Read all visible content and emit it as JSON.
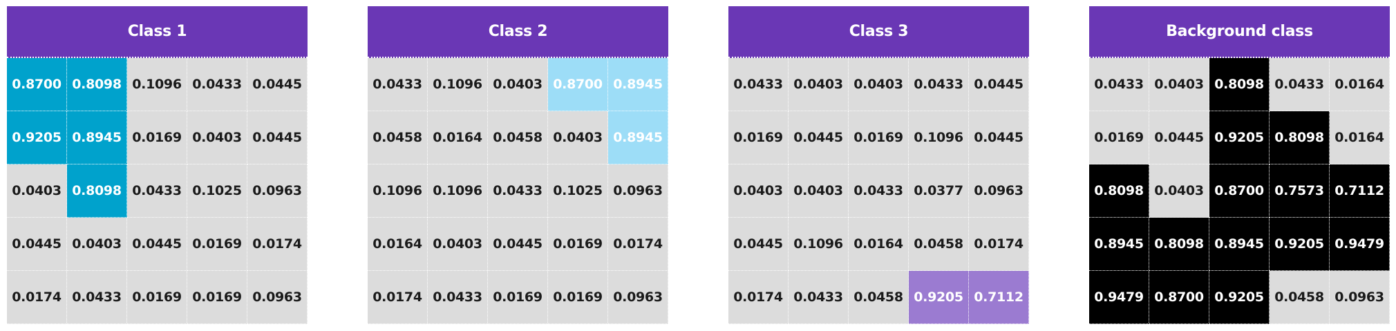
{
  "panels": [
    {
      "title": "Class 1",
      "highlight_color": "#00a2cc",
      "rows": [
        [
          "0.8700",
          "0.8098",
          "0.1096",
          "0.0433",
          "0.0445"
        ],
        [
          "0.9205",
          "0.8945",
          "0.0169",
          "0.0403",
          "0.0445"
        ],
        [
          "0.0403",
          "0.8098",
          "0.0433",
          "0.1025",
          "0.0963"
        ],
        [
          "0.0445",
          "0.0403",
          "0.0445",
          "0.0169",
          "0.0174"
        ],
        [
          "0.0174",
          "0.0433",
          "0.0169",
          "0.0169",
          "0.0963"
        ]
      ],
      "highlighted": [
        [
          0,
          0
        ],
        [
          0,
          1
        ],
        [
          1,
          0
        ],
        [
          1,
          1
        ],
        [
          2,
          1
        ]
      ]
    },
    {
      "title": "Class 2",
      "highlight_color": "#9dddf7",
      "rows": [
        [
          "0.0433",
          "0.1096",
          "0.0403",
          "0.8700",
          "0.8945"
        ],
        [
          "0.0458",
          "0.0164",
          "0.0458",
          "0.0403",
          "0.8945"
        ],
        [
          "0.1096",
          "0.1096",
          "0.0433",
          "0.1025",
          "0.0963"
        ],
        [
          "0.0164",
          "0.0403",
          "0.0445",
          "0.0169",
          "0.0174"
        ],
        [
          "0.0174",
          "0.0433",
          "0.0169",
          "0.0169",
          "0.0963"
        ]
      ],
      "highlighted": [
        [
          0,
          3
        ],
        [
          0,
          4
        ],
        [
          1,
          4
        ]
      ]
    },
    {
      "title": "Class 3",
      "highlight_color": "#9b7bd1",
      "rows": [
        [
          "0.0433",
          "0.0403",
          "0.0403",
          "0.0433",
          "0.0445"
        ],
        [
          "0.0169",
          "0.0445",
          "0.0169",
          "0.1096",
          "0.0445"
        ],
        [
          "0.0403",
          "0.0403",
          "0.0433",
          "0.0377",
          "0.0963"
        ],
        [
          "0.0445",
          "0.1096",
          "0.0164",
          "0.0458",
          "0.0174"
        ],
        [
          "0.0174",
          "0.0433",
          "0.0458",
          "0.9205",
          "0.7112"
        ]
      ],
      "highlighted": [
        [
          4,
          3
        ],
        [
          4,
          4
        ]
      ]
    },
    {
      "title": "Background class",
      "highlight_color": "#000000",
      "rows": [
        [
          "0.0433",
          "0.0403",
          "0.8098",
          "0.0433",
          "0.0164"
        ],
        [
          "0.0169",
          "0.0445",
          "0.9205",
          "0.8098",
          "0.0164"
        ],
        [
          "0.8098",
          "0.0403",
          "0.8700",
          "0.7573",
          "0.7112"
        ],
        [
          "0.8945",
          "0.8098",
          "0.8945",
          "0.9205",
          "0.9479"
        ],
        [
          "0.9479",
          "0.8700",
          "0.9205",
          "0.0458",
          "0.0963"
        ]
      ],
      "highlighted": [
        [
          0,
          2
        ],
        [
          1,
          2
        ],
        [
          1,
          3
        ],
        [
          2,
          0
        ],
        [
          2,
          2
        ],
        [
          2,
          3
        ],
        [
          2,
          4
        ],
        [
          3,
          0
        ],
        [
          3,
          1
        ],
        [
          3,
          2
        ],
        [
          3,
          3
        ],
        [
          3,
          4
        ],
        [
          4,
          0
        ],
        [
          4,
          1
        ],
        [
          4,
          2
        ]
      ]
    }
  ]
}
